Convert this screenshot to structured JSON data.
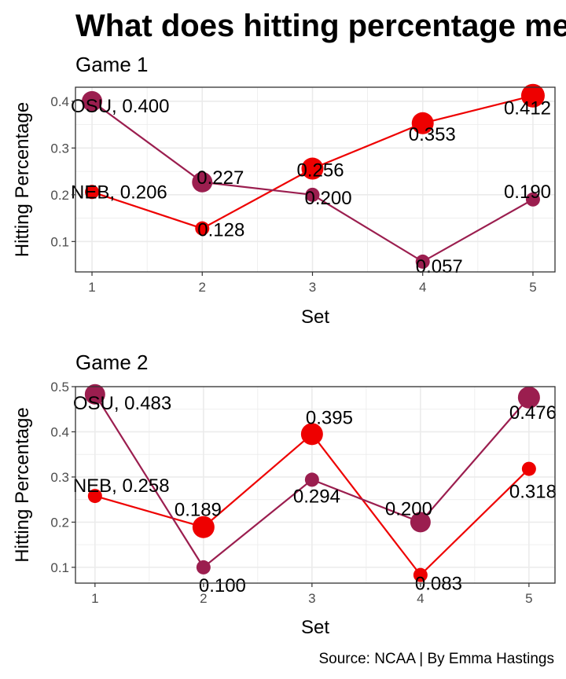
{
  "title": "What does hitting percentage mean",
  "caption": "Source: NCAA | By Emma Hastings",
  "colors": {
    "NEB": "#ee0000",
    "OSU": "#9b1e4f",
    "grid": "#ebebeb",
    "panel_border": "#333333"
  },
  "chart_data": [
    {
      "type": "line",
      "subtitle": "Game 1",
      "xlabel": "Set",
      "ylabel": "Hitting Percentage",
      "x": [
        1,
        2,
        3,
        4,
        5
      ],
      "xlim": [
        0.85,
        5.2
      ],
      "ylim": [
        0.035,
        0.43
      ],
      "yticks": [
        0.1,
        0.2,
        0.3,
        0.4
      ],
      "yticklabels": [
        "0.1",
        "0.2",
        "0.3",
        "0.4"
      ],
      "xticklabels": [
        "1",
        "2",
        "3",
        "4",
        "5"
      ],
      "grid": true,
      "series": [
        {
          "key": "NEB",
          "values": [
            0.206,
            0.128,
            0.256,
            0.353,
            0.412
          ],
          "labels": [
            "NEB, 0.206",
            "0.128",
            "0.256",
            "0.353",
            "0.412"
          ],
          "sizes": [
            9,
            9,
            14,
            14,
            15
          ]
        },
        {
          "key": "OSU",
          "values": [
            0.4,
            0.227,
            0.2,
            0.057,
            0.19
          ],
          "labels": [
            "OSU, 0.400",
            "0.227",
            "0.200",
            "0.057",
            "0.190"
          ],
          "sizes": [
            13,
            13,
            9,
            9,
            9
          ]
        }
      ]
    },
    {
      "type": "line",
      "subtitle": "Game 2",
      "xlabel": "Set",
      "ylabel": "Hitting Percentage",
      "x": [
        1,
        2,
        3,
        4,
        5
      ],
      "xlim": [
        0.82,
        5.24
      ],
      "ylim": [
        0.065,
        0.5
      ],
      "yticks": [
        0.1,
        0.2,
        0.3,
        0.4,
        0.5
      ],
      "yticklabels": [
        "0.1",
        "0.2",
        "0.3",
        "0.4",
        "0.5"
      ],
      "xticklabels": [
        "1",
        "2",
        "3",
        "4",
        "5"
      ],
      "grid": true,
      "series": [
        {
          "key": "NEB",
          "values": [
            0.258,
            0.189,
            0.395,
            0.083,
            0.318
          ],
          "labels": [
            "NEB, 0.258",
            "0.189",
            "0.395",
            "0.083",
            "0.318"
          ],
          "sizes": [
            9,
            14,
            14,
            9,
            9
          ]
        },
        {
          "key": "OSU",
          "values": [
            0.483,
            0.1,
            0.294,
            0.2,
            0.476
          ],
          "labels": [
            "OSU, 0.483",
            "0.100",
            "0.294",
            "0.200",
            "0.476"
          ],
          "sizes": [
            13,
            9,
            9,
            13,
            14
          ]
        }
      ]
    }
  ]
}
